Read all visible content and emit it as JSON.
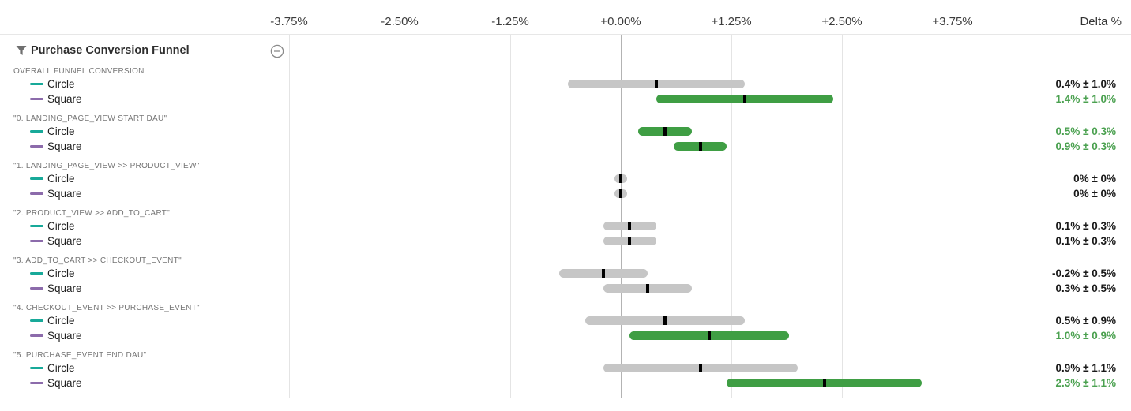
{
  "panel": {
    "title": "Purchase Conversion Funnel"
  },
  "axis": {
    "delta_header": "Delta %"
  },
  "colors": {
    "significant_bar": "#3f9e44",
    "significant_text": "#4ba150",
    "neutral_bar": "#c6c6c6",
    "neutral_text": "#1a1a1a",
    "estimate_tick": "#000000",
    "series_circle": "#18a999",
    "series_square": "#8c6bab",
    "zero_gridline": "#b3b3b3",
    "gridline": "#e4e4e4"
  },
  "chart_data": {
    "type": "bar",
    "subtype": "horizontal-confidence-interval",
    "title": "Purchase Conversion Funnel",
    "xlabel": "Delta %",
    "x_ticks": [
      "-3.75%",
      "-2.50%",
      "-1.25%",
      "+0.00%",
      "+1.25%",
      "+2.50%",
      "+3.75%"
    ],
    "xlim": [
      -3.75,
      3.75
    ],
    "grid": true,
    "legend_position": "left-rows",
    "series_legend": [
      {
        "name": "Circle",
        "color": "#18a999"
      },
      {
        "name": "Square",
        "color": "#8c6bab"
      }
    ],
    "groups": [
      {
        "metric": "OVERALL FUNNEL CONVERSION",
        "rows": [
          {
            "series": "Circle",
            "delta_pct": 0.4,
            "margin_pct": 1.0,
            "display": "0.4% ± 1.0%",
            "significant": false
          },
          {
            "series": "Square",
            "delta_pct": 1.4,
            "margin_pct": 1.0,
            "display": "1.4% ± 1.0%",
            "significant": true
          }
        ]
      },
      {
        "metric": "\"0. LANDING_PAGE_VIEW START DAU\"",
        "rows": [
          {
            "series": "Circle",
            "delta_pct": 0.5,
            "margin_pct": 0.3,
            "display": "0.5% ± 0.3%",
            "significant": true
          },
          {
            "series": "Square",
            "delta_pct": 0.9,
            "margin_pct": 0.3,
            "display": "0.9% ± 0.3%",
            "significant": true
          }
        ]
      },
      {
        "metric": "\"1. LANDING_PAGE_VIEW >> PRODUCT_VIEW\"",
        "rows": [
          {
            "series": "Circle",
            "delta_pct": 0,
            "margin_pct": 0,
            "display": "0% ± 0%",
            "significant": false
          },
          {
            "series": "Square",
            "delta_pct": 0,
            "margin_pct": 0,
            "display": "0% ± 0%",
            "significant": false
          }
        ]
      },
      {
        "metric": "\"2. PRODUCT_VIEW >> ADD_TO_CART\"",
        "rows": [
          {
            "series": "Circle",
            "delta_pct": 0.1,
            "margin_pct": 0.3,
            "display": "0.1% ± 0.3%",
            "significant": false
          },
          {
            "series": "Square",
            "delta_pct": 0.1,
            "margin_pct": 0.3,
            "display": "0.1% ± 0.3%",
            "significant": false
          }
        ]
      },
      {
        "metric": "\"3. ADD_TO_CART >> CHECKOUT_EVENT\"",
        "rows": [
          {
            "series": "Circle",
            "delta_pct": -0.2,
            "margin_pct": 0.5,
            "display": "-0.2% ± 0.5%",
            "significant": false
          },
          {
            "series": "Square",
            "delta_pct": 0.3,
            "margin_pct": 0.5,
            "display": "0.3% ± 0.5%",
            "significant": false
          }
        ]
      },
      {
        "metric": "\"4. CHECKOUT_EVENT >> PURCHASE_EVENT\"",
        "rows": [
          {
            "series": "Circle",
            "delta_pct": 0.5,
            "margin_pct": 0.9,
            "display": "0.5% ± 0.9%",
            "significant": false
          },
          {
            "series": "Square",
            "delta_pct": 1.0,
            "margin_pct": 0.9,
            "display": "1.0% ± 0.9%",
            "significant": true
          }
        ]
      },
      {
        "metric": "\"5. PURCHASE_EVENT END DAU\"",
        "rows": [
          {
            "series": "Circle",
            "delta_pct": 0.9,
            "margin_pct": 1.1,
            "display": "0.9% ± 1.1%",
            "significant": false
          },
          {
            "series": "Square",
            "delta_pct": 2.3,
            "margin_pct": 1.1,
            "display": "2.3% ± 1.1%",
            "significant": true
          }
        ]
      }
    ]
  }
}
